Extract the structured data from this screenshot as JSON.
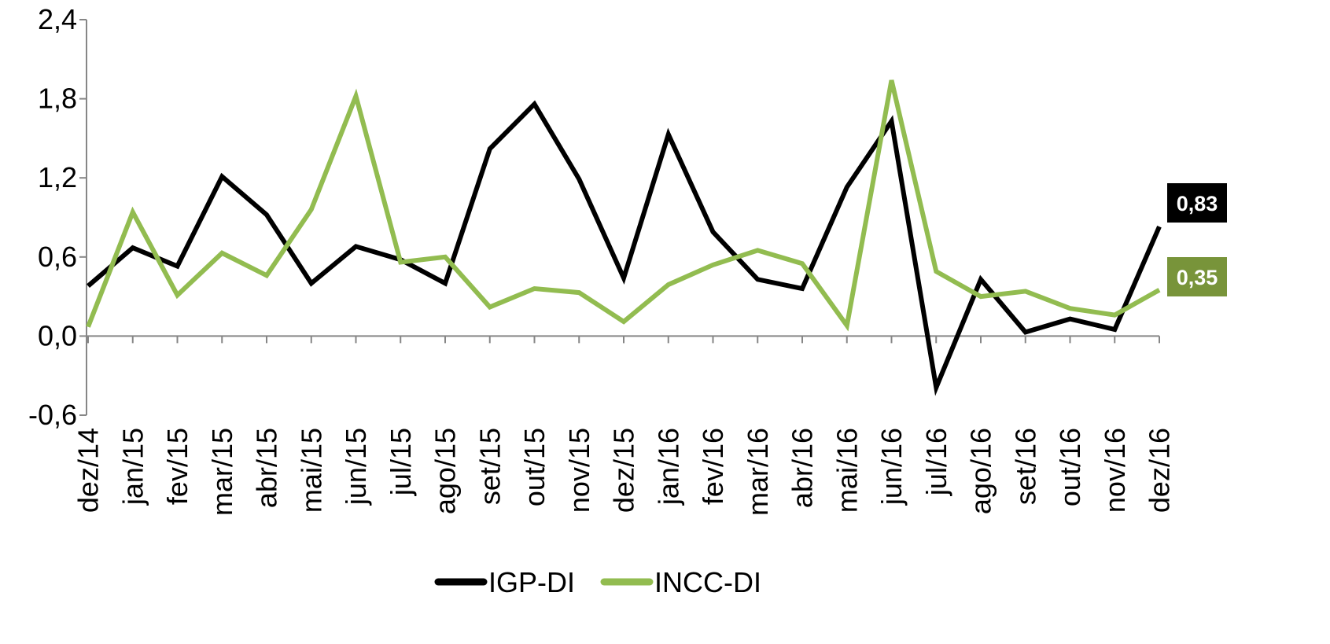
{
  "chart_data": {
    "type": "line",
    "categories": [
      "dez/14",
      "jan/15",
      "fev/15",
      "mar/15",
      "abr/15",
      "mai/15",
      "jun/15",
      "jul/15",
      "ago/15",
      "set/15",
      "out/15",
      "nov/15",
      "dez/15",
      "jan/16",
      "fev/16",
      "mar/16",
      "abr/16",
      "mai/16",
      "jun/16",
      "jul/16",
      "ago/16",
      "set/16",
      "out/16",
      "nov/16",
      "dez/16"
    ],
    "y_ticks": [
      "2,4",
      "1,8",
      "1,2",
      "0,6",
      "0,0",
      "-0,6"
    ],
    "y_tick_values": [
      2.4,
      1.8,
      1.2,
      0.6,
      0.0,
      -0.6
    ],
    "ylim": [
      -0.6,
      2.4
    ],
    "grid": false,
    "legend_position": "bottom",
    "series": [
      {
        "name": "IGP-DI",
        "color": "#000000",
        "values": [
          0.38,
          0.67,
          0.53,
          1.21,
          0.92,
          0.4,
          0.68,
          0.58,
          0.4,
          1.42,
          1.76,
          1.19,
          0.44,
          1.53,
          0.79,
          0.43,
          0.36,
          1.13,
          1.63,
          -0.39,
          0.43,
          0.03,
          0.13,
          0.05,
          0.83
        ],
        "end_label": "0,83"
      },
      {
        "name": "INCC-DI",
        "color": "#92BC50",
        "values": [
          0.07,
          0.94,
          0.31,
          0.63,
          0.46,
          0.96,
          1.82,
          0.56,
          0.6,
          0.22,
          0.36,
          0.33,
          0.11,
          0.39,
          0.54,
          0.65,
          0.55,
          0.08,
          1.94,
          0.49,
          0.3,
          0.34,
          0.21,
          0.16,
          0.35
        ],
        "end_label": "0,35",
        "end_label_color": "#78943A"
      }
    ]
  }
}
